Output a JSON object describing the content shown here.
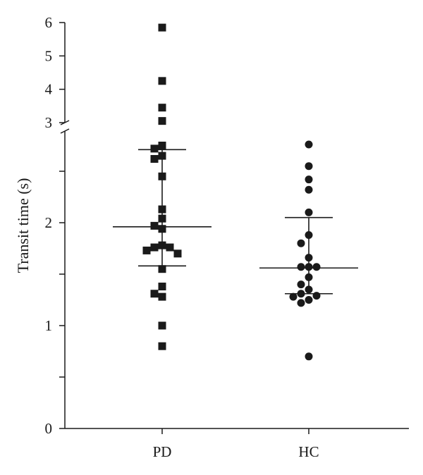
{
  "chart_data": {
    "type": "scatter",
    "title": "",
    "xlabel": "",
    "ylabel": "Transit time (s)",
    "categories": [
      "PD",
      "HC"
    ],
    "y_axis": "broken",
    "lower_ylim": [
      0,
      2.8
    ],
    "upper_ylim": [
      3,
      6
    ],
    "lower_ticks": [
      "0",
      "1",
      "2"
    ],
    "upper_ticks": [
      "3",
      "4",
      "5",
      "6"
    ],
    "grid": false,
    "legend": "none",
    "series": [
      {
        "category": "PD",
        "marker": "square",
        "values": [
          5.85,
          4.25,
          3.45,
          3.05,
          2.75,
          2.72,
          2.65,
          2.62,
          2.45,
          2.13,
          2.04,
          1.97,
          1.94,
          1.78,
          1.76,
          1.76,
          1.73,
          1.7,
          1.55,
          1.38,
          1.31,
          1.28,
          1.0,
          0.8
        ],
        "median": 1.96,
        "q1": 1.58,
        "q3": 2.71
      },
      {
        "category": "HC",
        "marker": "circle",
        "values": [
          2.76,
          2.55,
          2.42,
          2.32,
          2.1,
          1.88,
          1.8,
          1.66,
          1.57,
          1.57,
          1.57,
          1.47,
          1.4,
          1.35,
          1.31,
          1.29,
          1.28,
          1.25,
          1.22,
          0.7
        ],
        "median": 1.56,
        "q1": 1.31,
        "q3": 2.05
      }
    ],
    "colors": {
      "marks": "#1a1a1a",
      "background": "#ffffff"
    }
  }
}
